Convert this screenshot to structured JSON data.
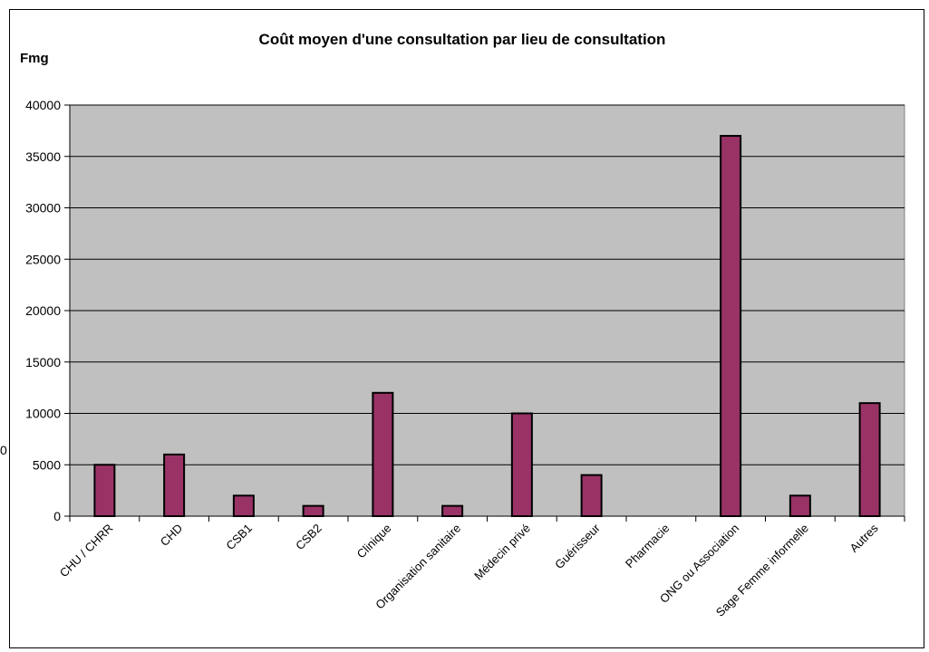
{
  "chart_data": {
    "type": "bar",
    "title": "Coût moyen d'une consultation par lieu de consultation",
    "ylabel": "Fmg",
    "xlabel": "",
    "ylim": [
      0,
      40000
    ],
    "yticks": [
      0,
      5000,
      10000,
      15000,
      20000,
      25000,
      30000,
      35000,
      40000
    ],
    "grid": true,
    "legend": "none",
    "categories": [
      "CHU / CHRR",
      "CHD",
      "CSB1",
      "CSB2",
      "Clinique",
      "Organisation sanitaire",
      "Médecin privé",
      "Guérisseur",
      "Pharmacie",
      "ONG ou Association",
      "Sage Femme informelle",
      "Autres"
    ],
    "values": [
      5000,
      6000,
      2000,
      1000,
      12000,
      1000,
      10000,
      4000,
      0,
      37000,
      2000,
      11000
    ],
    "colors": {
      "bar": "#993366",
      "plot_background": "#c0c0c0"
    },
    "stray_label": "0"
  }
}
